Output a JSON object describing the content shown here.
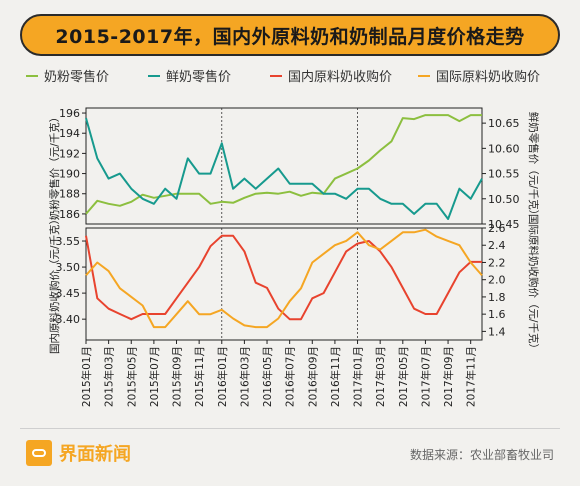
{
  "title": "2015-2017年，国内外原料奶和奶制品月度价格走势",
  "brand": "界面新闻",
  "source": "数据来源：农业部畜牧业司",
  "colors": {
    "green": "#8cbf3f",
    "teal": "#179a8e",
    "red": "#e8432e",
    "orange": "#f5a623",
    "accent": "#f5a623"
  },
  "chart_data": [
    {
      "type": "line",
      "x": [
        "2015年01月",
        "2015年02月",
        "2015年03月",
        "2015年04月",
        "2015年05月",
        "2015年06月",
        "2015年07月",
        "2015年08月",
        "2015年09月",
        "2015年10月",
        "2015年11月",
        "2015年12月",
        "2016年01月",
        "2016年02月",
        "2016年03月",
        "2016年04月",
        "2016年05月",
        "2016年06月",
        "2016年07月",
        "2016年08月",
        "2016年09月",
        "2016年10月",
        "2016年11月",
        "2016年12月",
        "2017年01月",
        "2017年02月",
        "2017年03月",
        "2017年04月",
        "2017年05月",
        "2017年06月",
        "2017年07月",
        "2017年08月",
        "2017年09月",
        "2017年10月",
        "2017年11月",
        "2017年12月"
      ],
      "xticks": [
        "2015年01月",
        "2015年03月",
        "2015年05月",
        "2015年07月",
        "2015年09月",
        "2015年11月",
        "2016年01月",
        "2016年03月",
        "2016年05月",
        "2016年07月",
        "2016年09月",
        "2016年11月",
        "2017年01月",
        "2017年03月",
        "2017年05月",
        "2017年07月",
        "2017年09月",
        "2017年11月"
      ],
      "ylabel": "奶粉零售价（元/千克）",
      "y2label": "鲜奶零售价（元/千克）",
      "ylim": [
        185,
        196.5
      ],
      "y2lim": [
        10.45,
        10.68
      ],
      "yticks": [
        186,
        188,
        190,
        192,
        194,
        196
      ],
      "y2ticks": [
        10.45,
        10.5,
        10.55,
        10.6,
        10.65
      ],
      "series": [
        {
          "name": "奶粉零售价",
          "axis": "left",
          "color": "#8cbf3f",
          "values": [
            186.0,
            187.3,
            187.0,
            186.8,
            187.2,
            187.9,
            187.6,
            187.8,
            188.0,
            188.0,
            188.0,
            187.0,
            187.2,
            187.1,
            187.6,
            188.0,
            188.1,
            188.0,
            188.2,
            187.8,
            188.1,
            188.0,
            189.5,
            190.0,
            190.5,
            191.3,
            192.3,
            193.2,
            195.5,
            195.4,
            195.8,
            195.8,
            195.8,
            195.2,
            195.8,
            195.8
          ]
        },
        {
          "name": "鲜奶零售价",
          "axis": "right",
          "color": "#179a8e",
          "values": [
            10.66,
            10.58,
            10.54,
            10.55,
            10.52,
            10.5,
            10.49,
            10.52,
            10.5,
            10.58,
            10.55,
            10.55,
            10.61,
            10.52,
            10.54,
            10.52,
            10.54,
            10.56,
            10.53,
            10.53,
            10.53,
            10.51,
            10.51,
            10.5,
            10.52,
            10.52,
            10.5,
            10.49,
            10.49,
            10.47,
            10.49,
            10.49,
            10.46,
            10.52,
            10.5,
            10.54
          ]
        }
      ]
    },
    {
      "type": "line",
      "x": [
        "2015年01月",
        "2015年02月",
        "2015年03月",
        "2015年04月",
        "2015年05月",
        "2015年06月",
        "2015年07月",
        "2015年08月",
        "2015年09月",
        "2015年10月",
        "2015年11月",
        "2015年12月",
        "2016年01月",
        "2016年02月",
        "2016年03月",
        "2016年04月",
        "2016年05月",
        "2016年06月",
        "2016年07月",
        "2016年08月",
        "2016年09月",
        "2016年10月",
        "2016年11月",
        "2016年12月",
        "2017年01月",
        "2017年02月",
        "2017年03月",
        "2017年04月",
        "2017年05月",
        "2017年06月",
        "2017年07月",
        "2017年08月",
        "2017年09月",
        "2017年10月",
        "2017年11月",
        "2017年12月"
      ],
      "ylabel": "国内原料奶收购价（元/千克）",
      "y2label": "国际原料奶收购价（元/千克）",
      "ylim": [
        3.36,
        3.575
      ],
      "y2lim": [
        1.3,
        2.6
      ],
      "yticks": [
        3.4,
        3.45,
        3.5,
        3.55
      ],
      "y2ticks": [
        1.4,
        1.6,
        1.8,
        2.0,
        2.2,
        2.4,
        2.6
      ],
      "series": [
        {
          "name": "国内原料奶收购价",
          "axis": "left",
          "color": "#e8432e",
          "values": [
            3.56,
            3.44,
            3.42,
            3.41,
            3.4,
            3.41,
            3.41,
            3.41,
            3.44,
            3.47,
            3.5,
            3.54,
            3.56,
            3.56,
            3.53,
            3.47,
            3.46,
            3.42,
            3.4,
            3.4,
            3.44,
            3.45,
            3.49,
            3.53,
            3.545,
            3.55,
            3.53,
            3.5,
            3.46,
            3.42,
            3.41,
            3.41,
            3.45,
            3.49,
            3.51,
            3.51
          ]
        },
        {
          "name": "国际原料奶收购价",
          "axis": "right",
          "color": "#f5a623",
          "values": [
            2.05,
            2.2,
            2.1,
            1.9,
            1.8,
            1.7,
            1.45,
            1.45,
            1.6,
            1.75,
            1.6,
            1.6,
            1.65,
            1.55,
            1.47,
            1.45,
            1.45,
            1.55,
            1.75,
            1.9,
            2.2,
            2.3,
            2.4,
            2.45,
            2.55,
            2.4,
            2.35,
            2.45,
            2.55,
            2.55,
            2.58,
            2.5,
            2.45,
            2.4,
            2.2,
            2.05
          ]
        }
      ]
    }
  ]
}
